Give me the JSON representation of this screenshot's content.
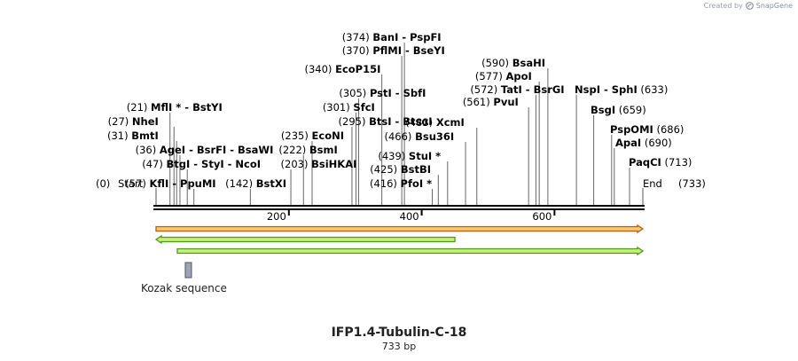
{
  "credit": {
    "prefix": "Created by",
    "brand": "SnapGene",
    "icon": "snapgene-logo-icon"
  },
  "map": {
    "title": "IFP1.4-Tubulin-C-18",
    "length_label": "733 bp",
    "length_bp": 733,
    "start_label": "Start",
    "start_pos": "(0)",
    "end_label": "End",
    "end_pos": "(733)",
    "ticks": [
      {
        "bp": 200,
        "label": "200"
      },
      {
        "bp": 400,
        "label": "400"
      },
      {
        "bp": 600,
        "label": "600"
      }
    ],
    "sites": [
      {
        "bp": 21,
        "pos": "(21)",
        "name": "MflI * - BstYI",
        "side": "left"
      },
      {
        "bp": 27,
        "pos": "(27)",
        "name": "NheI",
        "side": "left"
      },
      {
        "bp": 31,
        "pos": "(31)",
        "name": "BmtI",
        "side": "left"
      },
      {
        "bp": 36,
        "pos": "(36)",
        "name": "AgeI  - BsrFI  - BsaWI",
        "side": "left"
      },
      {
        "bp": 47,
        "pos": "(47)",
        "name": "BtgI  - StyI  - NcoI",
        "side": "left"
      },
      {
        "bp": 57,
        "pos": "(57)",
        "name": "KflI  - PpuMI",
        "side": "left"
      },
      {
        "bp": 142,
        "pos": "(142)",
        "name": "BstXI",
        "side": "left"
      },
      {
        "bp": 203,
        "pos": "(203)",
        "name": "BsiHKAI",
        "side": "left"
      },
      {
        "bp": 222,
        "pos": "(222)",
        "name": "BsmI",
        "side": "left"
      },
      {
        "bp": 235,
        "pos": "(235)",
        "name": "EcoNI",
        "side": "left"
      },
      {
        "bp": 295,
        "pos": "(295)",
        "name": "BtsI  - BtsαI",
        "side": "left"
      },
      {
        "bp": 301,
        "pos": "(301)",
        "name": "SfcI",
        "side": "left"
      },
      {
        "bp": 305,
        "pos": "(305)",
        "name": "PstI  - SbfI",
        "side": "left"
      },
      {
        "bp": 340,
        "pos": "(340)",
        "name": "EcoP15I",
        "side": "left"
      },
      {
        "bp": 370,
        "pos": "(370)",
        "name": "PflMI  - BseYI",
        "side": "left"
      },
      {
        "bp": 374,
        "pos": "(374)",
        "name": "BanI  - PspFI",
        "side": "left"
      },
      {
        "bp": 416,
        "pos": "(416)",
        "name": "PfoI *",
        "side": "left"
      },
      {
        "bp": 425,
        "pos": "(425)",
        "name": "BstBI",
        "side": "left"
      },
      {
        "bp": 439,
        "pos": "(439)",
        "name": "StuI *",
        "side": "left"
      },
      {
        "bp": 466,
        "pos": "(466)",
        "name": "Bsu36I",
        "side": "left"
      },
      {
        "bp": 483,
        "pos": "(483)",
        "name": "XcmI",
        "side": "left"
      },
      {
        "bp": 561,
        "pos": "(561)",
        "name": "PvuI",
        "side": "left"
      },
      {
        "bp": 572,
        "pos": "(572)",
        "name": "TatI  - BsrGI",
        "side": "left"
      },
      {
        "bp": 577,
        "pos": "(577)",
        "name": "ApoI",
        "side": "left"
      },
      {
        "bp": 590,
        "pos": "(590)",
        "name": "BsaHI",
        "side": "left"
      },
      {
        "bp": 633,
        "pos": "(633)",
        "name": "NspI  - SphI",
        "side": "right"
      },
      {
        "bp": 659,
        "pos": "(659)",
        "name": "BsgI",
        "side": "right"
      },
      {
        "bp": 686,
        "pos": "(686)",
        "name": "PspOMI",
        "side": "right"
      },
      {
        "bp": 690,
        "pos": "(690)",
        "name": "ApaI",
        "side": "right"
      },
      {
        "bp": 713,
        "pos": "(713)",
        "name": "PaqCI",
        "side": "right"
      }
    ],
    "features": [
      {
        "name": "orange-feature-forward",
        "start": 0,
        "end": 733,
        "direction": "forward",
        "fill": "#f7c96a",
        "stroke": "#c25b16",
        "label": ""
      },
      {
        "name": "green-feature-reverse",
        "start": 0,
        "end": 450,
        "direction": "reverse",
        "fill": "#c8ee7a",
        "stroke": "#4e9a1c",
        "label": ""
      },
      {
        "name": "green-feature-forward",
        "start": 32,
        "end": 733,
        "direction": "forward",
        "fill": "#c8ee7a",
        "stroke": "#4e9a1c",
        "label": ""
      },
      {
        "name": "kozak-sequence-feature",
        "start": 40,
        "end": 50,
        "direction": "none",
        "fill": "#9ea3b8",
        "stroke": "#555566",
        "label": "Kozak sequence"
      }
    ]
  }
}
